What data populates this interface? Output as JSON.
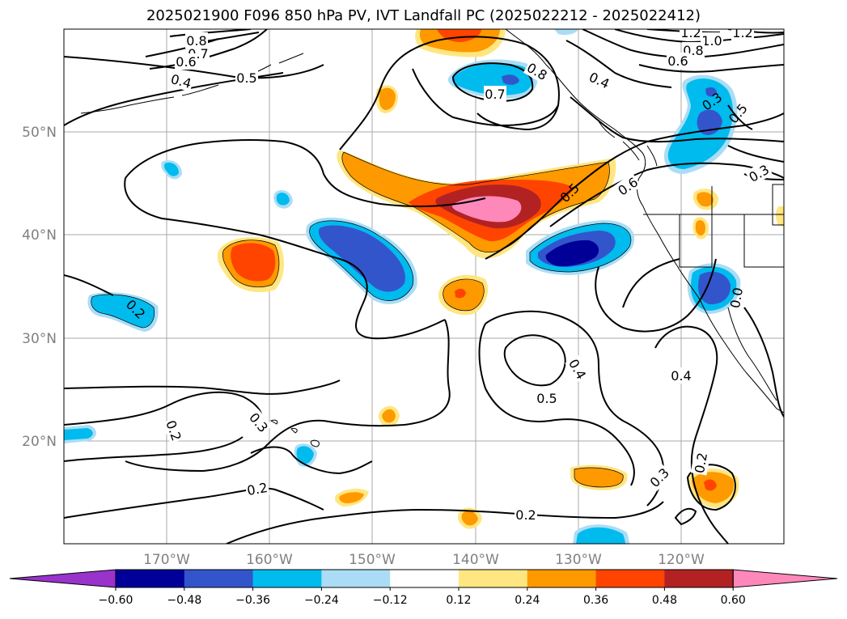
{
  "title": "2025021900 F096 850 hPa PV, IVT Landfall PC (2025022212 - 2025022412)",
  "axes": {
    "latitude_labels": [
      "50°N",
      "40°N",
      "30°N",
      "20°N"
    ],
    "longitude_labels": [
      "170°W",
      "160°W",
      "150°W",
      "140°W",
      "130°W",
      "120°W"
    ]
  },
  "colorbar": {
    "tick_labels": [
      "−0.60",
      "−0.48",
      "−0.36",
      "−0.24",
      "−0.12",
      "0.12",
      "0.24",
      "0.36",
      "0.48",
      "0.60"
    ],
    "colors": [
      "#9933cc",
      "#000099",
      "#3355cc",
      "#00bbee",
      "#aaddf5",
      "#ffffff",
      "#ffe680",
      "#ff9900",
      "#ff4400",
      "#b22222",
      "#ff88bb"
    ]
  },
  "contour_labels": [
    "0.8",
    "0.7",
    "0.6",
    "0.4",
    "0.5",
    "0.7",
    "0.8",
    "0.4",
    "1.2",
    "1.0",
    "1.2",
    "0.8",
    "0.6",
    "0.3",
    "0.5",
    "0.6",
    "0.5",
    "0.3",
    "0.2",
    "0.4",
    "0.5",
    "0.4",
    "0.2",
    "0.3",
    "0.2",
    "0.3",
    "0.2",
    "0.2",
    "0.0"
  ],
  "map": {
    "projection_extent": "180°W–110°W, 10°N–60°N",
    "gridlines": true,
    "coastlines": true
  }
}
